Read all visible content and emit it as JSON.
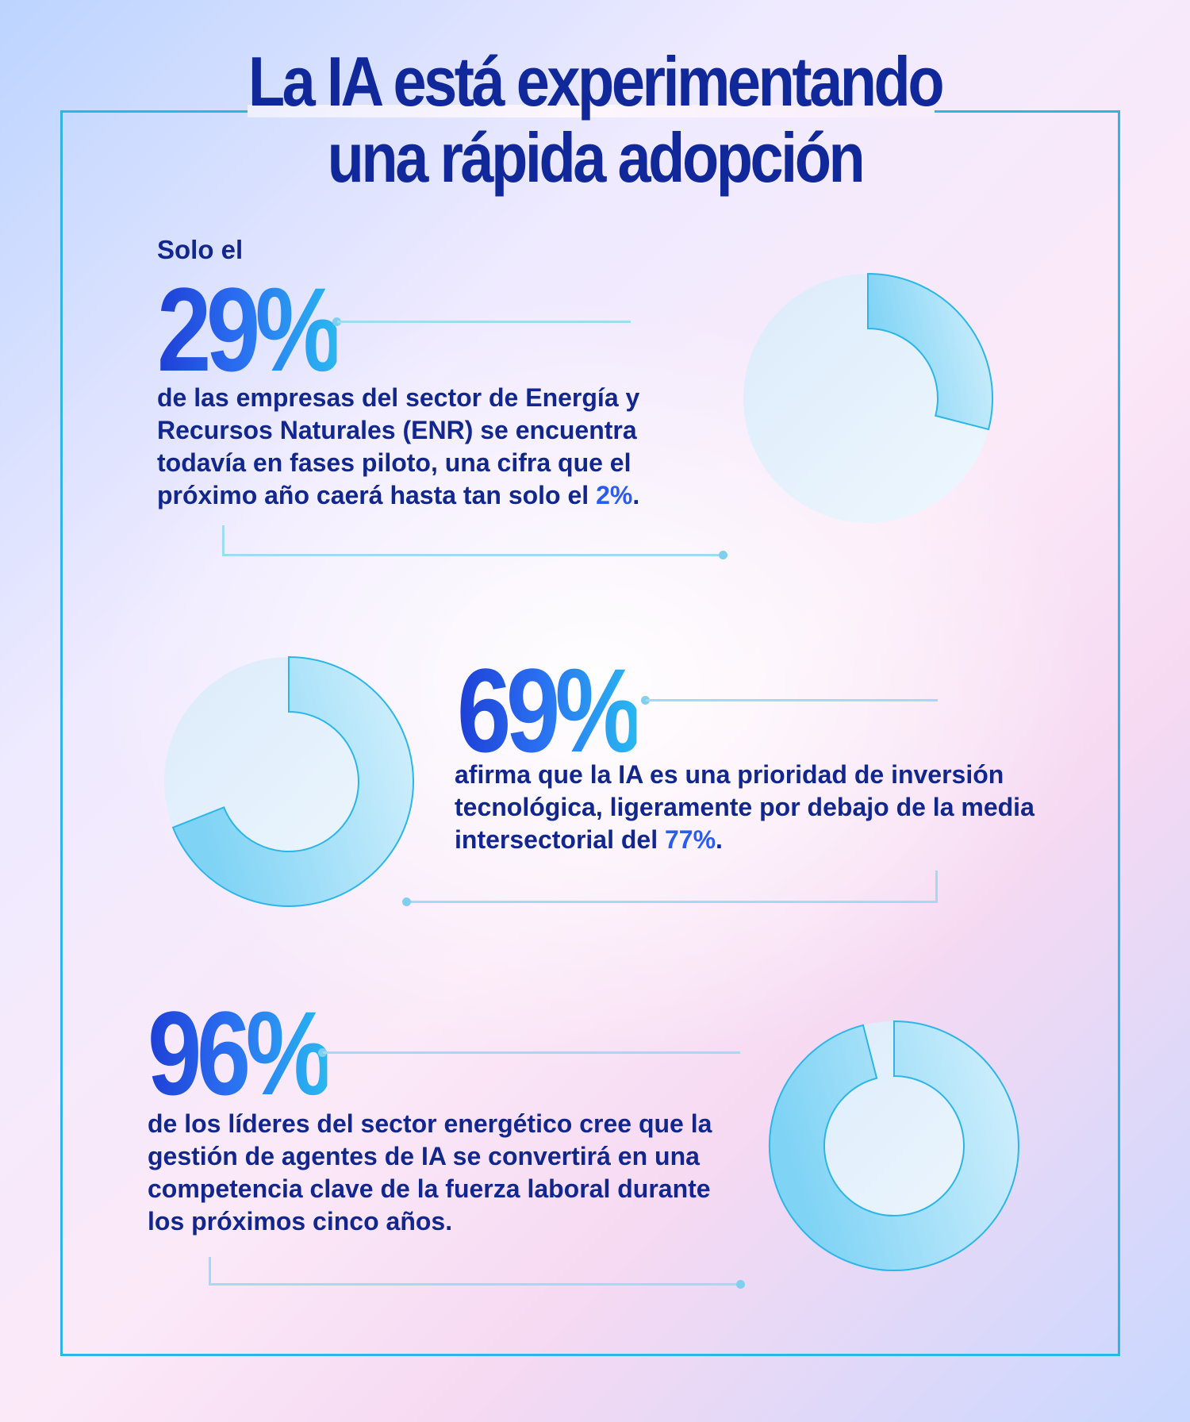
{
  "title": [
    "La IA está experimentando",
    "una rápida adopción"
  ],
  "stats": [
    {
      "kicker": "Solo el",
      "value": "29%",
      "text": "de las empresas del sector de Energía y Recursos Naturales (ENR) se encuentra todavía en fases piloto, una cifra que el próximo año caerá hasta tan solo el ",
      "highlight": "2%",
      "tail": "."
    },
    {
      "kicker": "",
      "value": "69%",
      "text": "afirma que la IA es una prioridad de inversión tecnológica, ligeramente por debajo de la media intersectorial del ",
      "highlight": "77%",
      "tail": "."
    },
    {
      "kicker": "",
      "value": "96%",
      "text": "de los líderes del sector energético cree que la gestión de agentes de IA se convertirá en una competencia clave de la fuerza laboral durante los próximos cinco años.",
      "highlight": "",
      "tail": ""
    }
  ],
  "chart_data": [
    {
      "type": "pie",
      "values": [
        29,
        71
      ],
      "style": "donut"
    },
    {
      "type": "pie",
      "values": [
        69,
        31
      ],
      "style": "donut"
    },
    {
      "type": "pie",
      "values": [
        96,
        4
      ],
      "style": "donut"
    }
  ],
  "colors": {
    "title": "#10289a",
    "text": "#12278e",
    "highlight": "#2a5cf0",
    "frame": "#2cb6e8",
    "connector": "#9fdcf2",
    "donut_fill_start": "#7fd3f5",
    "donut_fill_end": "#d6f1fd",
    "donut_track": "#e3f2fd"
  }
}
